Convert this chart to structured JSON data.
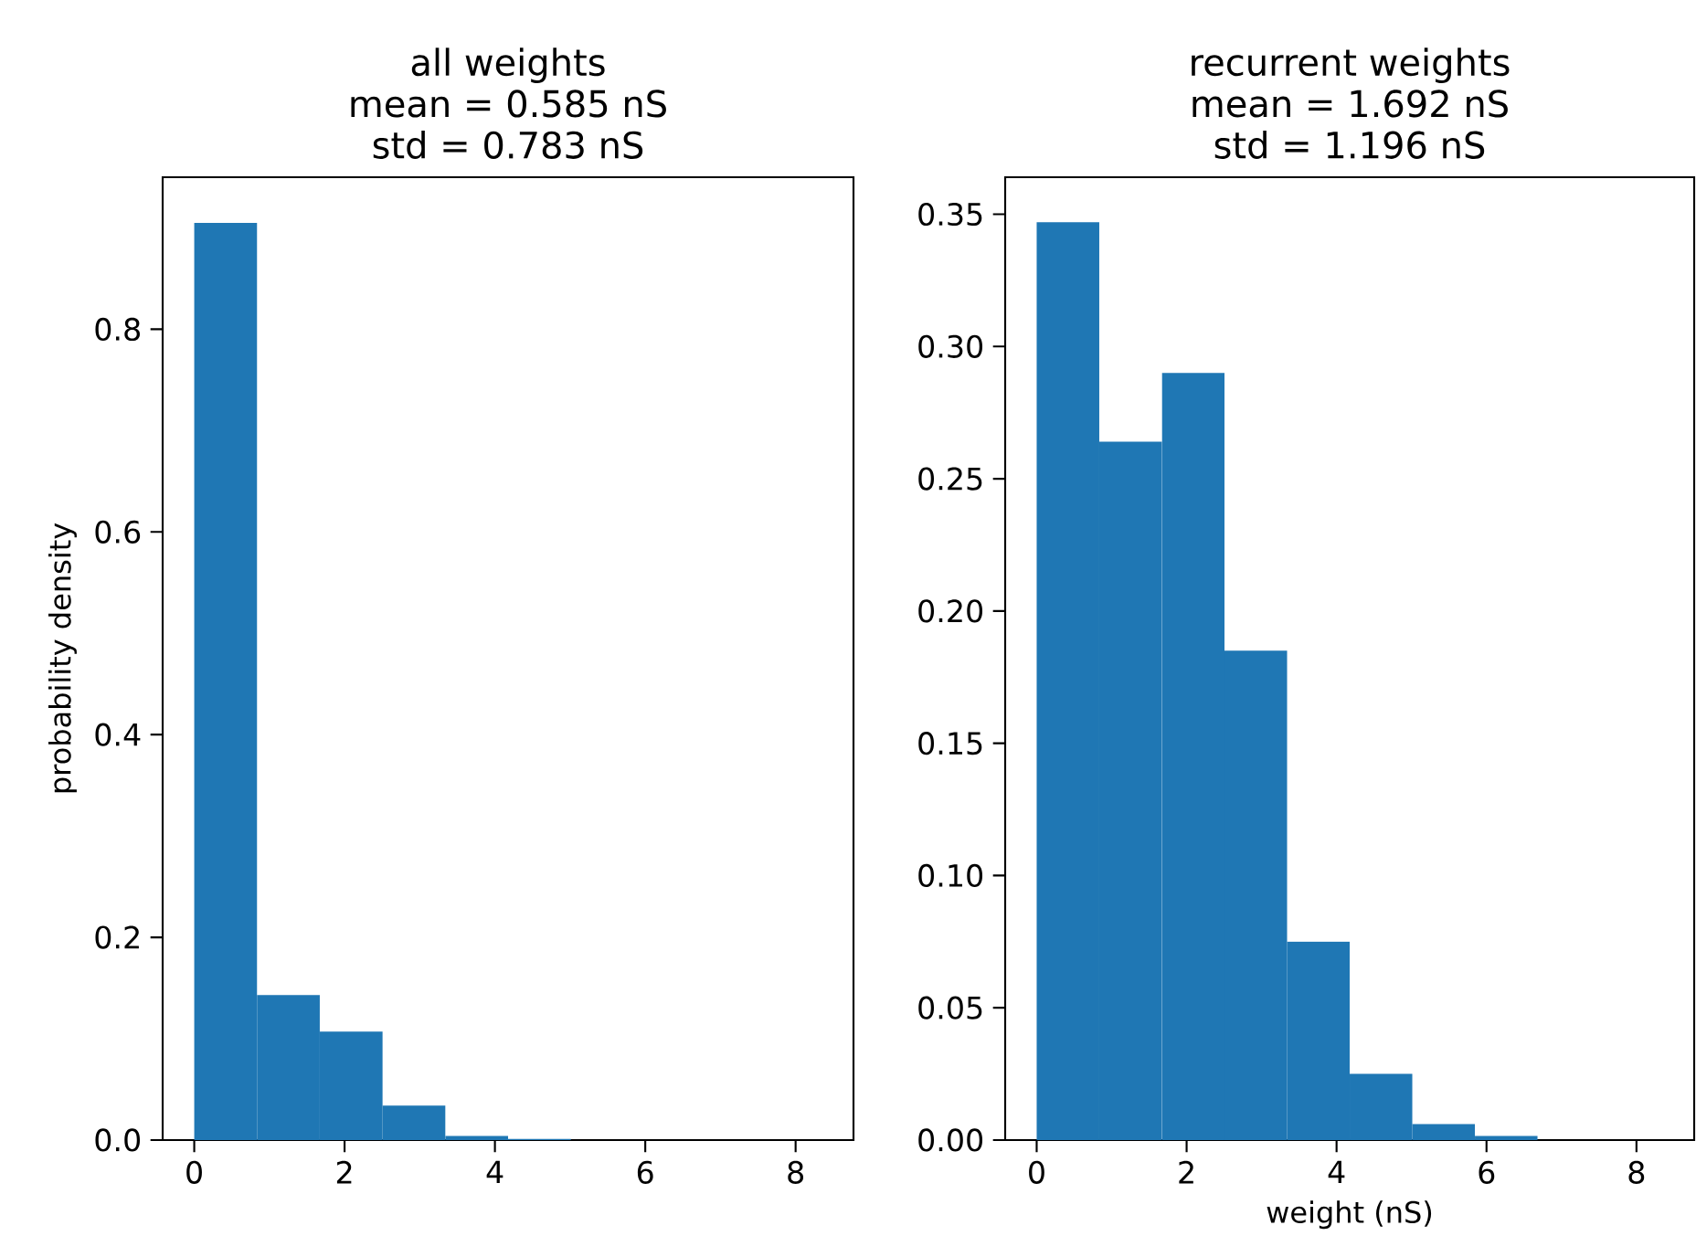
{
  "chart_data": [
    {
      "type": "histogram",
      "title": "all weights",
      "subtitle": "mean = 0.585 nS",
      "annotations": [
        "std = 0.783 nS"
      ],
      "ylabel": "probability density",
      "color": "#1f77b4",
      "bins": [
        0,
        0.835,
        1.67,
        2.505,
        3.34,
        4.175,
        5.01,
        5.845,
        6.68,
        7.515,
        8.35
      ],
      "values": [
        0.905,
        0.143,
        0.107,
        0.034,
        0.004,
        0.001,
        0,
        0,
        0,
        0
      ],
      "xlim": [
        -0.42,
        8.77
      ],
      "ylim": [
        0,
        0.95
      ],
      "xticks": [
        0,
        2,
        4,
        6,
        8
      ],
      "yticks": [
        {
          "value": 0,
          "label": "0.0"
        },
        0.2,
        0.4,
        0.6,
        0.8
      ],
      "grid": false
    },
    {
      "type": "histogram",
      "title": "recurrent weights",
      "subtitle": "mean = 1.692 nS",
      "annotations": [
        "std = 1.196 nS"
      ],
      "xlabel": "weight (nS)",
      "color": "#1f77b4",
      "bins": [
        0,
        0.835,
        1.67,
        2.505,
        3.34,
        4.175,
        5.01,
        5.845,
        6.68,
        7.515,
        8.35
      ],
      "values": [
        0.347,
        0.264,
        0.29,
        0.185,
        0.075,
        0.025,
        0.006,
        0.0015,
        0,
        0
      ],
      "xlim": [
        -0.42,
        8.77
      ],
      "ylim": [
        0,
        0.364
      ],
      "xticks": [
        0,
        2,
        4,
        6,
        8
      ],
      "yticks": [
        {
          "value": 0,
          "label": "0.00"
        },
        0.05,
        {
          "value": 0.1,
          "label": "0.10"
        },
        0.15,
        {
          "value": 0.2,
          "label": "0.20"
        },
        0.25,
        {
          "value": 0.3,
          "label": "0.30"
        },
        0.35
      ],
      "grid": false
    }
  ]
}
